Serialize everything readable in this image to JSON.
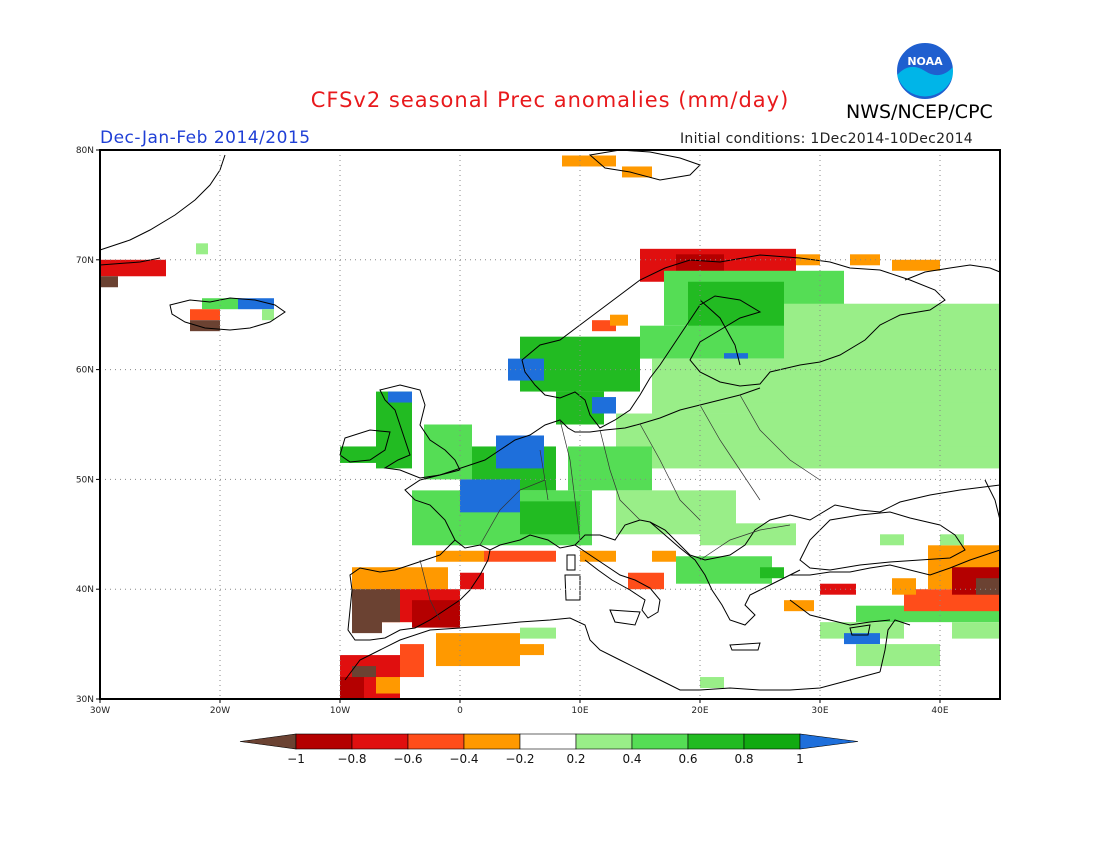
{
  "title": "CFSv2 seasonal Prec anomalies (mm/day)",
  "agency": "NWS/NCEP/CPC",
  "logo_text": "NOAA",
  "season": "Dec-Jan-Feb 2014/2015",
  "initial_conditions": "Initial conditions: 1Dec2014-10Dec2014",
  "axes": {
    "lon_labels": [
      "30W",
      "20W",
      "10W",
      "0",
      "10E",
      "20E",
      "30E",
      "40E"
    ],
    "lat_labels": [
      "30N",
      "40N",
      "50N",
      "60N",
      "70N",
      "80N"
    ],
    "lon_range": [
      -30,
      45
    ],
    "lat_range": [
      30,
      80
    ]
  },
  "colorbar": {
    "labels": [
      "-1",
      "-0.8",
      "-0.6",
      "-0.4",
      "-0.2",
      "0.2",
      "0.4",
      "0.6",
      "0.8",
      "1"
    ],
    "colors": [
      "#6b4232",
      "#b40000",
      "#e00f0f",
      "#ff4d1a",
      "#ff9900",
      "#ffffff",
      "#99ee88",
      "#55dd55",
      "#22bb22",
      "#11aa11",
      "#1e6fdb"
    ]
  },
  "chart_data": {
    "type": "heatmap",
    "title": "CFSv2 seasonal Prec anomalies (mm/day)",
    "units": "mm/day",
    "grid": true,
    "cells": [
      {
        "lon": [
          -30,
          -24.5
        ],
        "lat": [
          68.5,
          70
        ],
        "cls": "r2"
      },
      {
        "lon": [
          -30,
          -28.5
        ],
        "lat": [
          67.5,
          68.5
        ],
        "cls": "br"
      },
      {
        "lon": [
          -22,
          -21
        ],
        "lat": [
          70.5,
          71.5
        ],
        "cls": "g1"
      },
      {
        "lon": [
          -21.5,
          -18.5
        ],
        "lat": [
          65.5,
          66.5
        ],
        "cls": "g2"
      },
      {
        "lon": [
          -18.5,
          -15.5
        ],
        "lat": [
          65.5,
          66.5
        ],
        "cls": "bl"
      },
      {
        "lon": [
          -22.5,
          -20
        ],
        "lat": [
          64.5,
          65.5
        ],
        "cls": "r3"
      },
      {
        "lon": [
          -22.5,
          -20
        ],
        "lat": [
          63.5,
          64.5
        ],
        "cls": "br"
      },
      {
        "lon": [
          -16.5,
          -15.5
        ],
        "lat": [
          64.5,
          65.5
        ],
        "cls": "g1"
      },
      {
        "lon": [
          8.5,
          13
        ],
        "lat": [
          78.5,
          79.5
        ],
        "cls": "or"
      },
      {
        "lon": [
          13.5,
          16
        ],
        "lat": [
          77.5,
          78.5
        ],
        "cls": "or"
      },
      {
        "lon": [
          15,
          28
        ],
        "lat": [
          68,
          71
        ],
        "cls": "r2"
      },
      {
        "lon": [
          18,
          22
        ],
        "lat": [
          69,
          70.5
        ],
        "cls": "r1"
      },
      {
        "lon": [
          28,
          30
        ],
        "lat": [
          69.5,
          70.5
        ],
        "cls": "or"
      },
      {
        "lon": [
          32.5,
          35
        ],
        "lat": [
          69.5,
          70.5
        ],
        "cls": "or"
      },
      {
        "lon": [
          36,
          40
        ],
        "lat": [
          69,
          70
        ],
        "cls": "or"
      },
      {
        "lon": [
          11,
          13
        ],
        "lat": [
          63.5,
          64.5
        ],
        "cls": "r3"
      },
      {
        "lon": [
          12.5,
          14
        ],
        "lat": [
          64,
          65
        ],
        "cls": "or"
      },
      {
        "lon": [
          17,
          32
        ],
        "lat": [
          64,
          69
        ],
        "cls": "g2"
      },
      {
        "lon": [
          19,
          27
        ],
        "lat": [
          63,
          68
        ],
        "cls": "g3"
      },
      {
        "lon": [
          5,
          15
        ],
        "lat": [
          58,
          63
        ],
        "cls": "g3"
      },
      {
        "lon": [
          4,
          7
        ],
        "lat": [
          59,
          61
        ],
        "cls": "bl"
      },
      {
        "lon": [
          15,
          33
        ],
        "lat": [
          61,
          64
        ],
        "cls": "g2"
      },
      {
        "lon": [
          22,
          24
        ],
        "lat": [
          60.5,
          61.5
        ],
        "cls": "bl"
      },
      {
        "lon": [
          27,
          45
        ],
        "lat": [
          56,
          66
        ],
        "cls": "g1"
      },
      {
        "lon": [
          33,
          45
        ],
        "lat": [
          61,
          62.5
        ],
        "cls": "g1"
      },
      {
        "lon": [
          16,
          27
        ],
        "lat": [
          56,
          61
        ],
        "cls": "g1"
      },
      {
        "lon": [
          8,
          12
        ],
        "lat": [
          55,
          58
        ],
        "cls": "g3"
      },
      {
        "lon": [
          11,
          13
        ],
        "lat": [
          56,
          57.5
        ],
        "cls": "bl"
      },
      {
        "lon": [
          13,
          45
        ],
        "lat": [
          51,
          56
        ],
        "cls": "g1"
      },
      {
        "lon": [
          24,
          45
        ],
        "lat": [
          53,
          57
        ],
        "cls": "g1"
      },
      {
        "lon": [
          -10,
          -7
        ],
        "lat": [
          51.5,
          53
        ],
        "cls": "g3"
      },
      {
        "lon": [
          -7,
          -4
        ],
        "lat": [
          51,
          58
        ],
        "cls": "g3"
      },
      {
        "lon": [
          -6,
          -4
        ],
        "lat": [
          57,
          58
        ],
        "cls": "bl"
      },
      {
        "lon": [
          -3,
          1
        ],
        "lat": [
          50,
          55
        ],
        "cls": "g2"
      },
      {
        "lon": [
          1,
          8
        ],
        "lat": [
          49,
          53
        ],
        "cls": "g3"
      },
      {
        "lon": [
          3,
          7
        ],
        "lat": [
          51,
          54
        ],
        "cls": "bl"
      },
      {
        "lon": [
          -4,
          11
        ],
        "lat": [
          44,
          49
        ],
        "cls": "g2"
      },
      {
        "lon": [
          0,
          5
        ],
        "lat": [
          47,
          50
        ],
        "cls": "bl"
      },
      {
        "lon": [
          5,
          10
        ],
        "lat": [
          45,
          48
        ],
        "cls": "g3"
      },
      {
        "lon": [
          9,
          16
        ],
        "lat": [
          49,
          53
        ],
        "cls": "g2"
      },
      {
        "lon": [
          13,
          23
        ],
        "lat": [
          45,
          49
        ],
        "cls": "g1"
      },
      {
        "lon": [
          23,
          28
        ],
        "lat": [
          44,
          46
        ],
        "cls": "g1"
      },
      {
        "lon": [
          18,
          26
        ],
        "lat": [
          40.5,
          43
        ],
        "cls": "g2"
      },
      {
        "lon": [
          25,
          27
        ],
        "lat": [
          41,
          42
        ],
        "cls": "g3"
      },
      {
        "lon": [
          2,
          8
        ],
        "lat": [
          42.5,
          43.5
        ],
        "cls": "r3"
      },
      {
        "lon": [
          -2,
          2
        ],
        "lat": [
          42.5,
          43.5
        ],
        "cls": "or"
      },
      {
        "lon": [
          10,
          13
        ],
        "lat": [
          42.5,
          43.5
        ],
        "cls": "or"
      },
      {
        "lon": [
          16,
          18
        ],
        "lat": [
          42.5,
          43.5
        ],
        "cls": "or"
      },
      {
        "lon": [
          14,
          17
        ],
        "lat": [
          40,
          41.5
        ],
        "cls": "r3"
      },
      {
        "lon": [
          -9,
          -1
        ],
        "lat": [
          37,
          42
        ],
        "cls": "or"
      },
      {
        "lon": [
          -7,
          0
        ],
        "lat": [
          37,
          40
        ],
        "cls": "r2"
      },
      {
        "lon": [
          -9,
          -5
        ],
        "lat": [
          37,
          40
        ],
        "cls": "br"
      },
      {
        "lon": [
          -9,
          -6.5
        ],
        "lat": [
          36,
          37.5
        ],
        "cls": "br"
      },
      {
        "lon": [
          -4,
          0
        ],
        "lat": [
          36.5,
          39
        ],
        "cls": "r1"
      },
      {
        "lon": [
          0,
          2
        ],
        "lat": [
          40,
          41.5
        ],
        "cls": "r2"
      },
      {
        "lon": [
          -2,
          5
        ],
        "lat": [
          33,
          36
        ],
        "cls": "or"
      },
      {
        "lon": [
          5,
          7
        ],
        "lat": [
          34,
          35
        ],
        "cls": "or"
      },
      {
        "lon": [
          -10,
          -5
        ],
        "lat": [
          30,
          34
        ],
        "cls": "r2"
      },
      {
        "lon": [
          -10,
          -8
        ],
        "lat": [
          30,
          32
        ],
        "cls": "r1"
      },
      {
        "lon": [
          -9,
          -7
        ],
        "lat": [
          32,
          33
        ],
        "cls": "br"
      },
      {
        "lon": [
          -5,
          -3
        ],
        "lat": [
          32,
          35
        ],
        "cls": "r3"
      },
      {
        "lon": [
          -7,
          -5
        ],
        "lat": [
          30.5,
          32
        ],
        "cls": "or"
      },
      {
        "lon": [
          5,
          8
        ],
        "lat": [
          35.5,
          36.5
        ],
        "cls": "g1"
      },
      {
        "lon": [
          33,
          45
        ],
        "lat": [
          37,
          38.5
        ],
        "cls": "g2"
      },
      {
        "lon": [
          30,
          37
        ],
        "lat": [
          35.5,
          37
        ],
        "cls": "g1"
      },
      {
        "lon": [
          32,
          35
        ],
        "lat": [
          35,
          36
        ],
        "cls": "bl"
      },
      {
        "lon": [
          41,
          45
        ],
        "lat": [
          35.5,
          37
        ],
        "cls": "g1"
      },
      {
        "lon": [
          37,
          45
        ],
        "lat": [
          38,
          40
        ],
        "cls": "r3"
      },
      {
        "lon": [
          39,
          45
        ],
        "lat": [
          40,
          44
        ],
        "cls": "or"
      },
      {
        "lon": [
          41,
          45
        ],
        "lat": [
          39.5,
          42
        ],
        "cls": "r1"
      },
      {
        "lon": [
          43,
          45
        ],
        "lat": [
          39.5,
          41
        ],
        "cls": "br"
      },
      {
        "lon": [
          36,
          38
        ],
        "lat": [
          39.5,
          41
        ],
        "cls": "or"
      },
      {
        "lon": [
          30,
          33
        ],
        "lat": [
          39.5,
          40.5
        ],
        "cls": "r2"
      },
      {
        "lon": [
          27,
          29.5
        ],
        "lat": [
          38,
          39
        ],
        "cls": "or"
      },
      {
        "lon": [
          40,
          42
        ],
        "lat": [
          44,
          45
        ],
        "cls": "g1"
      },
      {
        "lon": [
          35,
          37
        ],
        "lat": [
          44,
          45
        ],
        "cls": "g1"
      },
      {
        "lon": [
          20,
          24
        ],
        "lat": [
          44,
          45.5
        ],
        "cls": "g1"
      },
      {
        "lon": [
          20,
          22
        ],
        "lat": [
          31,
          32
        ],
        "cls": "g1"
      },
      {
        "lon": [
          33,
          40
        ],
        "lat": [
          33,
          35
        ],
        "cls": "g1"
      }
    ]
  }
}
